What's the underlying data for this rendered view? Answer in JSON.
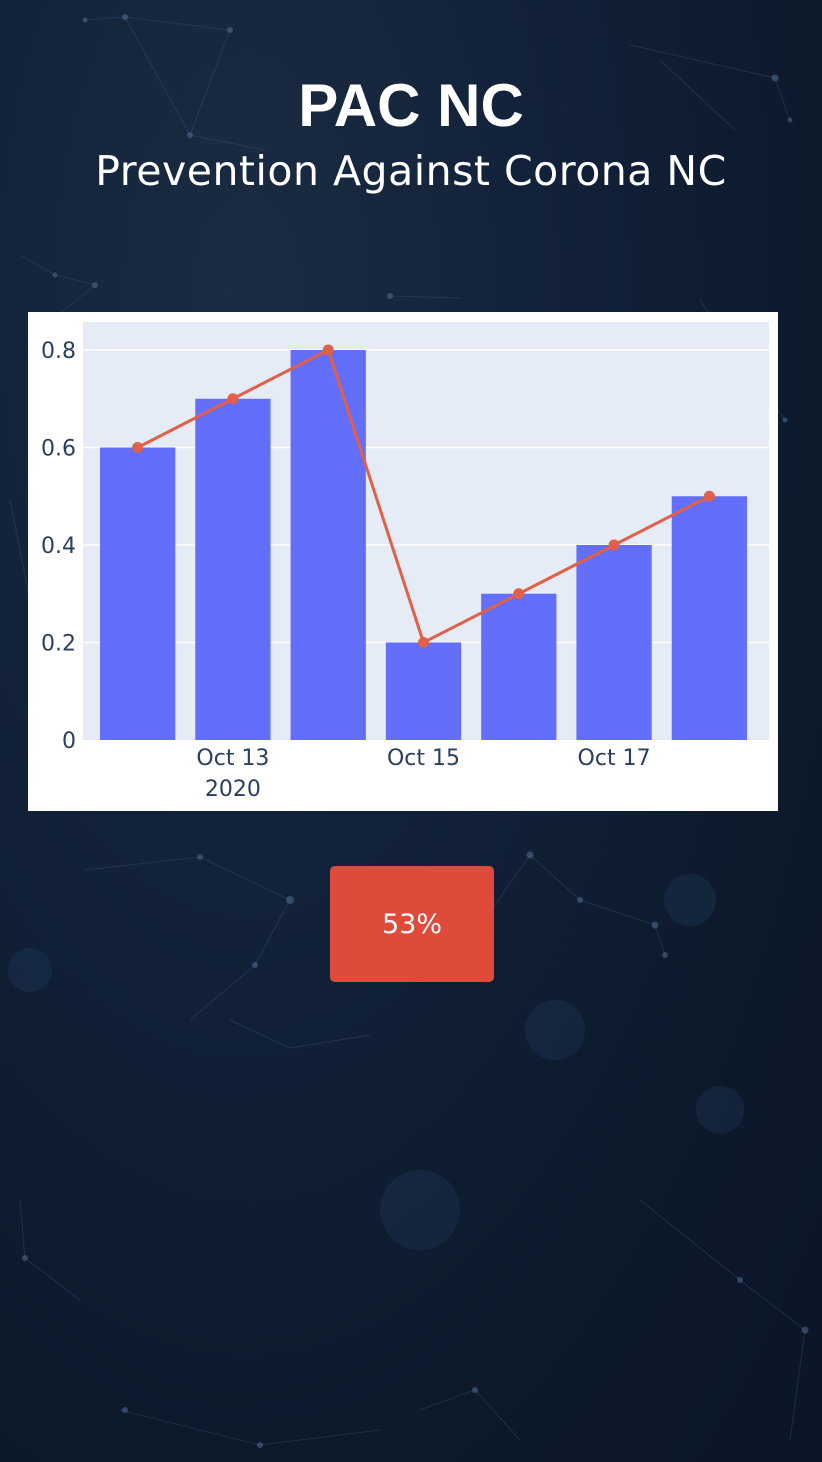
{
  "header": {
    "title": "PAC NC",
    "subtitle": "Prevention Against Corona NC"
  },
  "chart_data": {
    "type": "bar",
    "categories": [
      "2020-10-12",
      "2020-10-13",
      "2020-10-14",
      "2020-10-15",
      "2020-10-16",
      "2020-10-17",
      "2020-10-18"
    ],
    "series": [
      {
        "type": "bar",
        "values": [
          0.6,
          0.7,
          0.8,
          0.2,
          0.3,
          0.4,
          0.5
        ],
        "color": "#636efa"
      },
      {
        "type": "line",
        "values": [
          0.6,
          0.7,
          0.8,
          0.2,
          0.3,
          0.4,
          0.5
        ],
        "color": "#e0604a"
      }
    ],
    "ylim": [
      0,
      0.85
    ],
    "yticks": [
      {
        "value": 0,
        "label": "0"
      },
      {
        "value": 0.2,
        "label": "0.2"
      },
      {
        "value": 0.4,
        "label": "0.4"
      },
      {
        "value": 0.6,
        "label": "0.6"
      },
      {
        "value": 0.8,
        "label": "0.8"
      }
    ],
    "xticks": [
      {
        "index": 1,
        "label": "Oct 13",
        "sublabel": "2020"
      },
      {
        "index": 3,
        "label": "Oct 15",
        "sublabel": ""
      },
      {
        "index": 5,
        "label": "Oct 17",
        "sublabel": ""
      }
    ],
    "grid": true,
    "plot_background": "#e5ecf6"
  },
  "status_button": {
    "label": "53%",
    "color": "#df4b3b"
  }
}
